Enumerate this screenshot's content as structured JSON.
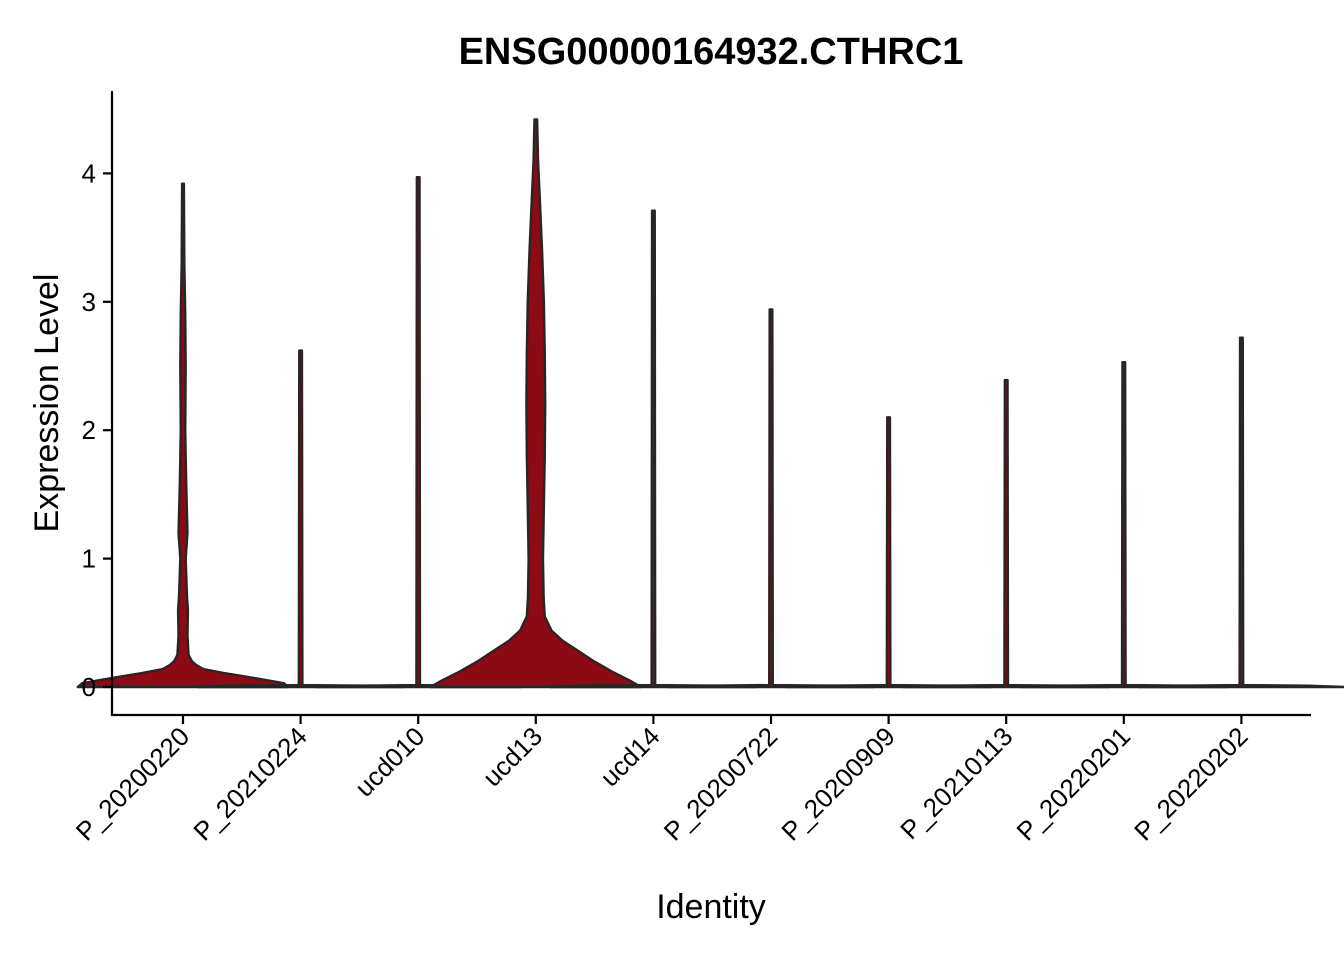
{
  "chart_data": {
    "type": "violin",
    "title": "ENSG00000164932.CTHRC1",
    "xlabel": "Identity",
    "ylabel": "Expression Level",
    "ylim": [
      -0.22,
      4.65
    ],
    "yticks": [
      "0",
      "1",
      "2",
      "3",
      "4"
    ],
    "grid": false,
    "legend": "none",
    "fill_color": "#8B0A14",
    "outline_color": "#262626",
    "categories": [
      "P_20200220",
      "P_20210224",
      "ucd010",
      "ucd13",
      "ucd14",
      "P_20200722",
      "P_20200909",
      "P_20210113",
      "P_20220201",
      "P_20220202"
    ],
    "series": [
      {
        "max": 3.92,
        "profile": [
          [
            0,
            0.47
          ],
          [
            0.03,
            0.45
          ],
          [
            0.07,
            0.32
          ],
          [
            0.11,
            0.18
          ],
          [
            0.14,
            0.09
          ],
          [
            0.17,
            0.06
          ],
          [
            0.2,
            0.04
          ],
          [
            0.25,
            0.025
          ],
          [
            0.4,
            0.02
          ],
          [
            0.6,
            0.022
          ],
          [
            0.7,
            0.018
          ],
          [
            1.0,
            0.012
          ],
          [
            1.2,
            0.02
          ],
          [
            1.6,
            0.014
          ],
          [
            2.0,
            0.01
          ],
          [
            2.5,
            0.012
          ],
          [
            2.9,
            0.01
          ],
          [
            3.3,
            0.006
          ],
          [
            3.92,
            0.004
          ]
        ]
      },
      {
        "max": 2.62,
        "profile": [
          [
            0,
            0.46
          ],
          [
            0.01,
            0.3
          ],
          [
            0.015,
            0.008
          ],
          [
            2.62,
            0.006
          ]
        ]
      },
      {
        "max": 3.97,
        "profile": [
          [
            0,
            0.46
          ],
          [
            0.01,
            0.3
          ],
          [
            0.015,
            0.008
          ],
          [
            3.97,
            0.006
          ]
        ]
      },
      {
        "max": 4.42,
        "profile": [
          [
            0,
            0.47
          ],
          [
            0.05,
            0.42
          ],
          [
            0.12,
            0.34
          ],
          [
            0.2,
            0.26
          ],
          [
            0.28,
            0.19
          ],
          [
            0.36,
            0.12
          ],
          [
            0.44,
            0.07
          ],
          [
            0.55,
            0.04
          ],
          [
            0.7,
            0.035
          ],
          [
            1.0,
            0.032
          ],
          [
            1.4,
            0.036
          ],
          [
            1.8,
            0.04
          ],
          [
            2.2,
            0.042
          ],
          [
            2.6,
            0.04
          ],
          [
            3.0,
            0.036
          ],
          [
            3.4,
            0.028
          ],
          [
            3.8,
            0.018
          ],
          [
            4.1,
            0.01
          ],
          [
            4.42,
            0.006
          ]
        ]
      },
      {
        "max": 3.71,
        "profile": [
          [
            0,
            0.46
          ],
          [
            0.01,
            0.3
          ],
          [
            0.015,
            0.008
          ],
          [
            3.71,
            0.006
          ]
        ]
      },
      {
        "max": 2.94,
        "profile": [
          [
            0,
            0.46
          ],
          [
            0.01,
            0.3
          ],
          [
            0.015,
            0.008
          ],
          [
            2.94,
            0.006
          ]
        ]
      },
      {
        "max": 2.1,
        "profile": [
          [
            0,
            0.46
          ],
          [
            0.01,
            0.3
          ],
          [
            0.015,
            0.008
          ],
          [
            2.1,
            0.006
          ]
        ]
      },
      {
        "max": 2.39,
        "profile": [
          [
            0,
            0.46
          ],
          [
            0.01,
            0.3
          ],
          [
            0.015,
            0.008
          ],
          [
            2.39,
            0.006
          ]
        ]
      },
      {
        "max": 2.53,
        "profile": [
          [
            0,
            0.46
          ],
          [
            0.01,
            0.3
          ],
          [
            0.015,
            0.008
          ],
          [
            2.53,
            0.006
          ]
        ]
      },
      {
        "max": 2.72,
        "profile": [
          [
            0,
            0.46
          ],
          [
            0.01,
            0.3
          ],
          [
            0.015,
            0.008
          ],
          [
            2.72,
            0.006
          ]
        ]
      }
    ]
  }
}
